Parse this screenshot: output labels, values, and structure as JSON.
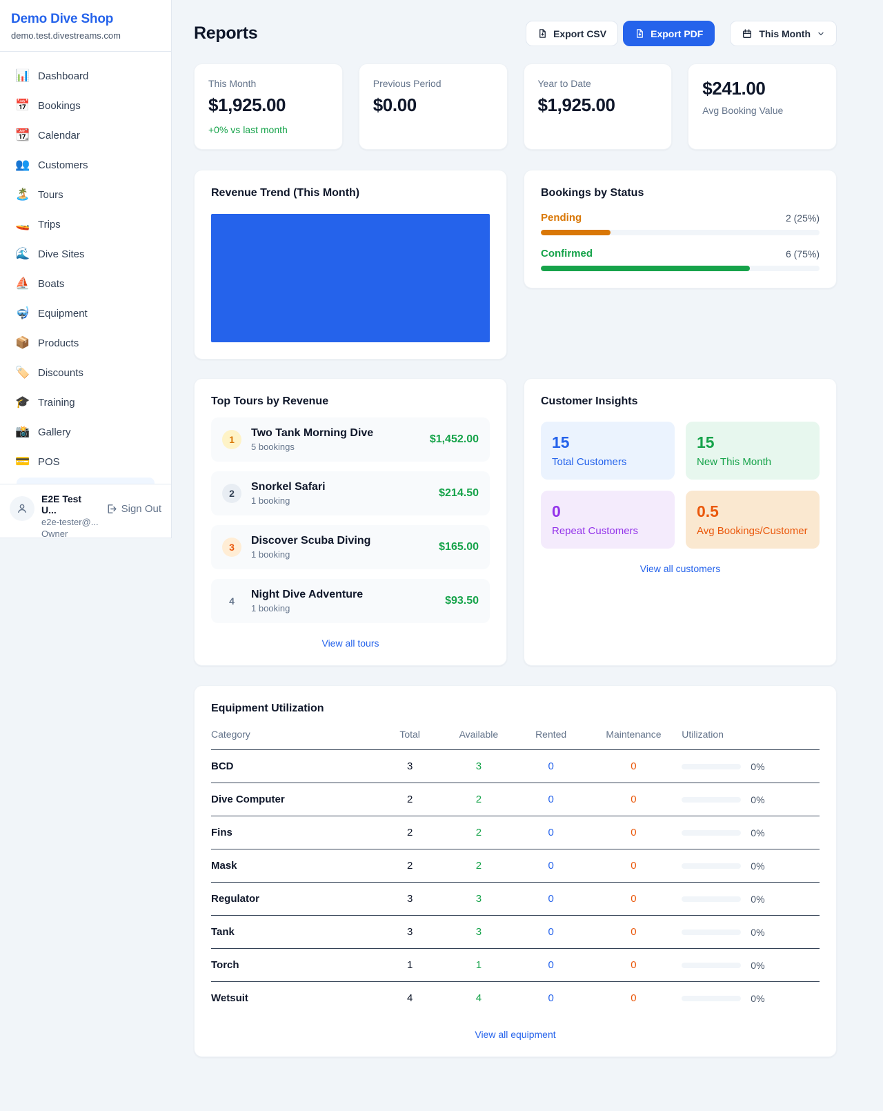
{
  "app": {
    "name": "Demo Dive Shop",
    "domain": "demo.test.divestreams.com"
  },
  "sidebar": {
    "items": [
      {
        "icon": "📊",
        "label": "Dashboard"
      },
      {
        "icon": "📅",
        "label": "Bookings"
      },
      {
        "icon": "📆",
        "label": "Calendar"
      },
      {
        "icon": "👥",
        "label": "Customers"
      },
      {
        "icon": "🏝️",
        "label": "Tours"
      },
      {
        "icon": "🚤",
        "label": "Trips"
      },
      {
        "icon": "🌊",
        "label": "Dive Sites"
      },
      {
        "icon": "⛵",
        "label": "Boats"
      },
      {
        "icon": "🤿",
        "label": "Equipment"
      },
      {
        "icon": "📦",
        "label": "Products"
      },
      {
        "icon": "🏷️",
        "label": "Discounts"
      },
      {
        "icon": "🎓",
        "label": "Training"
      },
      {
        "icon": "📸",
        "label": "Gallery"
      },
      {
        "icon": "💳",
        "label": "POS"
      }
    ],
    "user": {
      "name": "E2E Test U...",
      "email": "e2e-tester@...",
      "role": "Owner",
      "signout": "Sign Out"
    }
  },
  "header": {
    "title": "Reports",
    "export_csv": "Export CSV",
    "export_pdf": "Export PDF",
    "period": "This Month"
  },
  "stats": {
    "cards": [
      {
        "label": "This Month",
        "value": "$1,925.00",
        "delta": "+0% vs last month"
      },
      {
        "label": "Previous Period",
        "value": "$0.00"
      },
      {
        "label": "Year to Date",
        "value": "$1,925.00"
      },
      {
        "label": "Avg Booking Value",
        "value": "$241.00"
      }
    ]
  },
  "revenue_trend": {
    "title": "Revenue Trend (This Month)",
    "bar_color": "#2563eb"
  },
  "bookings_by_status": {
    "title": "Bookings by Status",
    "rows": [
      {
        "label": "Pending",
        "value": "2 (25%)",
        "pct": 25,
        "color": "#d97706"
      },
      {
        "label": "Confirmed",
        "value": "6 (75%)",
        "pct": 75,
        "color": "#16a34a"
      }
    ]
  },
  "top_tours": {
    "title": "Top Tours by Revenue",
    "rows": [
      {
        "rank": "1",
        "name": "Two Tank Morning Dive",
        "bookings": "5 bookings",
        "revenue": "$1,452.00",
        "badge_bg": "#fef3c7",
        "badge_color": "#d97706"
      },
      {
        "rank": "2",
        "name": "Snorkel Safari",
        "bookings": "1 booking",
        "revenue": "$214.50",
        "badge_bg": "#e8edf3",
        "badge_color": "#334155"
      },
      {
        "rank": "3",
        "name": "Discover Scuba Diving",
        "bookings": "1 booking",
        "revenue": "$165.00",
        "badge_bg": "#ffedd5",
        "badge_color": "#ea580c"
      },
      {
        "rank": "4",
        "name": "Night Dive Adventure",
        "bookings": "1 booking",
        "revenue": "$93.50",
        "badge_bg": "transparent",
        "badge_color": "#64748b"
      }
    ],
    "link": "View all tours"
  },
  "customer_insights": {
    "title": "Customer Insights",
    "tiles": [
      {
        "value": "15",
        "label": "Total Customers",
        "bg": "#ebf3fe",
        "color": "#2563eb"
      },
      {
        "value": "15",
        "label": "New This Month",
        "bg": "#e7f7ee",
        "color": "#16a34a"
      },
      {
        "value": "0",
        "label": "Repeat Customers",
        "bg": "#f4ebfc",
        "color": "#9333ea"
      },
      {
        "value": "0.5",
        "label": "Avg Bookings/Customer",
        "bg": "#fae8d0",
        "color": "#ea580c"
      }
    ],
    "link": "View all customers"
  },
  "equipment": {
    "title": "Equipment Utilization",
    "columns": [
      "Category",
      "Total",
      "Available",
      "Rented",
      "Maintenance",
      "Utilization"
    ],
    "rows": [
      {
        "category": "BCD",
        "total": "3",
        "available": "3",
        "rented": "0",
        "maintenance": "0",
        "utilization": "0%",
        "pct": 0
      },
      {
        "category": "Dive Computer",
        "total": "2",
        "available": "2",
        "rented": "0",
        "maintenance": "0",
        "utilization": "0%",
        "pct": 0
      },
      {
        "category": "Fins",
        "total": "2",
        "available": "2",
        "rented": "0",
        "maintenance": "0",
        "utilization": "0%",
        "pct": 0
      },
      {
        "category": "Mask",
        "total": "2",
        "available": "2",
        "rented": "0",
        "maintenance": "0",
        "utilization": "0%",
        "pct": 0
      },
      {
        "category": "Regulator",
        "total": "3",
        "available": "3",
        "rented": "0",
        "maintenance": "0",
        "utilization": "0%",
        "pct": 0
      },
      {
        "category": "Tank",
        "total": "3",
        "available": "3",
        "rented": "0",
        "maintenance": "0",
        "utilization": "0%",
        "pct": 0
      },
      {
        "category": "Torch",
        "total": "1",
        "available": "1",
        "rented": "0",
        "maintenance": "0",
        "utilization": "0%",
        "pct": 0
      },
      {
        "category": "Wetsuit",
        "total": "4",
        "available": "4",
        "rented": "0",
        "maintenance": "0",
        "utilization": "0%",
        "pct": 0
      }
    ],
    "link": "View all equipment"
  }
}
